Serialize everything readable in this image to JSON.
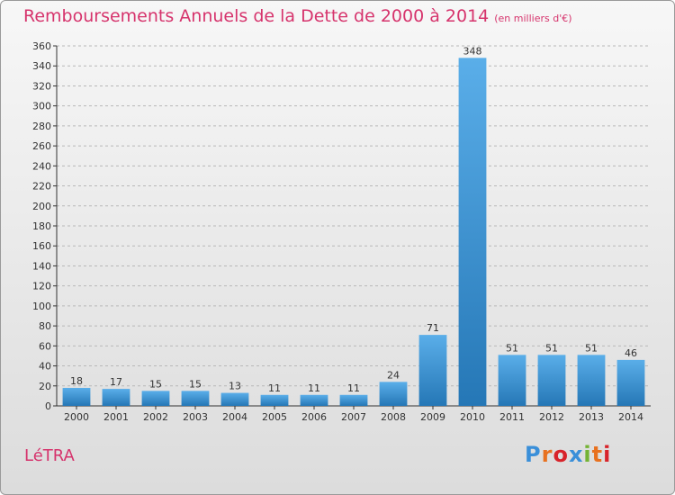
{
  "header": {
    "title": "Remboursements Annuels de la Dette de 2000 à 2014",
    "unit": "(en milliers d'€)"
  },
  "footer": {
    "commune": "LéTRA",
    "brand": "Proxiti",
    "brand_colors": [
      "#3a8fd9",
      "#e8711f",
      "#d8232a",
      "#3a8fd9",
      "#74b334",
      "#e8711f",
      "#d8232a"
    ]
  },
  "colors": {
    "accent": "#d6336c",
    "bar_top": "#5aaee9",
    "bar_bottom": "#2577b6",
    "grid": "#b8b8b8",
    "axis": "#333333"
  },
  "chart_data": {
    "type": "bar",
    "categories": [
      "2000",
      "2001",
      "2002",
      "2003",
      "2004",
      "2005",
      "2006",
      "2007",
      "2008",
      "2009",
      "2010",
      "2011",
      "2012",
      "2013",
      "2014"
    ],
    "values": [
      18,
      17,
      15,
      15,
      13,
      11,
      11,
      11,
      24,
      71,
      348,
      51,
      51,
      51,
      46
    ],
    "ylim": [
      0,
      360
    ],
    "yticks": [
      0,
      20,
      40,
      60,
      80,
      100,
      120,
      140,
      160,
      180,
      200,
      220,
      240,
      260,
      280,
      300,
      320,
      340,
      360
    ],
    "grid": true,
    "data_labels": true
  }
}
